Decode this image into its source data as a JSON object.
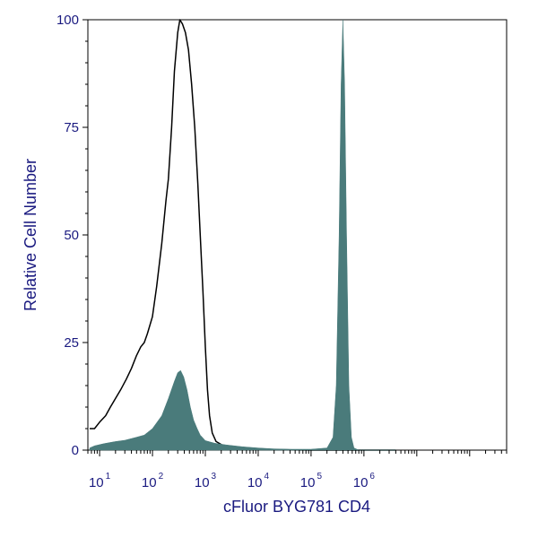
{
  "chart_data": {
    "type": "area",
    "xlabel": "cFluor BYG781 CD4",
    "ylabel": "Relative Cell Number",
    "x_scale": "log",
    "xlim": [
      6,
      500000000
    ],
    "ylim": [
      0,
      100
    ],
    "x_ticks": [
      {
        "base": "10",
        "exp": "1",
        "value": 10
      },
      {
        "base": "10",
        "exp": "2",
        "value": 100
      },
      {
        "base": "10",
        "exp": "3",
        "value": 1000
      },
      {
        "base": "10",
        "exp": "4",
        "value": 10000
      },
      {
        "base": "10",
        "exp": "5",
        "value": 100000
      },
      {
        "base": "10",
        "exp": "6",
        "value": 1000000
      }
    ],
    "y_ticks": [
      "0",
      "25",
      "50",
      "75",
      "100"
    ],
    "grid": false,
    "series": [
      {
        "style": "line",
        "color": "#000000",
        "points": [
          [
            6.5,
            5
          ],
          [
            8,
            5
          ],
          [
            10,
            6.5
          ],
          [
            13,
            8
          ],
          [
            16,
            10
          ],
          [
            20,
            12
          ],
          [
            25,
            14
          ],
          [
            32,
            16.5
          ],
          [
            40,
            19
          ],
          [
            50,
            22
          ],
          [
            60,
            24
          ],
          [
            70,
            25
          ],
          [
            80,
            27
          ],
          [
            100,
            31
          ],
          [
            120,
            38
          ],
          [
            150,
            48
          ],
          [
            180,
            58
          ],
          [
            200,
            63
          ],
          [
            230,
            75
          ],
          [
            260,
            88
          ],
          [
            300,
            97
          ],
          [
            330,
            100
          ],
          [
            370,
            99
          ],
          [
            420,
            97
          ],
          [
            480,
            93
          ],
          [
            550,
            85
          ],
          [
            630,
            75
          ],
          [
            720,
            62
          ],
          [
            800,
            50
          ],
          [
            900,
            37
          ],
          [
            1000,
            24
          ],
          [
            1100,
            14
          ],
          [
            1200,
            8
          ],
          [
            1350,
            4
          ],
          [
            1600,
            2
          ],
          [
            2200,
            1
          ],
          [
            3500,
            0.6
          ],
          [
            7000,
            0.3
          ],
          [
            20000,
            0.1
          ],
          [
            100000,
            0
          ],
          [
            4000000,
            0
          ]
        ]
      },
      {
        "style": "filled",
        "color": "#4a7b7b",
        "points": [
          [
            6.5,
            0.5
          ],
          [
            8,
            1
          ],
          [
            12,
            1.5
          ],
          [
            20,
            2
          ],
          [
            30,
            2.3
          ],
          [
            50,
            3
          ],
          [
            70,
            3.5
          ],
          [
            100,
            5
          ],
          [
            150,
            8
          ],
          [
            200,
            12
          ],
          [
            260,
            16
          ],
          [
            300,
            18
          ],
          [
            340,
            18.5
          ],
          [
            390,
            17
          ],
          [
            450,
            14
          ],
          [
            520,
            10
          ],
          [
            600,
            7
          ],
          [
            700,
            5
          ],
          [
            800,
            3.5
          ],
          [
            1000,
            2.2
          ],
          [
            1500,
            1.6
          ],
          [
            2500,
            1.2
          ],
          [
            5000,
            0.8
          ],
          [
            10000,
            0.5
          ],
          [
            20000,
            0.3
          ],
          [
            40000,
            0.2
          ],
          [
            100000,
            0.2
          ],
          [
            200000,
            0.5
          ],
          [
            260000,
            3
          ],
          [
            300000,
            15
          ],
          [
            340000,
            50
          ],
          [
            370000,
            85
          ],
          [
            400000,
            100
          ],
          [
            430000,
            85
          ],
          [
            470000,
            50
          ],
          [
            520000,
            15
          ],
          [
            580000,
            3
          ],
          [
            650000,
            0.5
          ],
          [
            800000,
            0
          ],
          [
            4000000,
            0
          ]
        ]
      }
    ]
  }
}
